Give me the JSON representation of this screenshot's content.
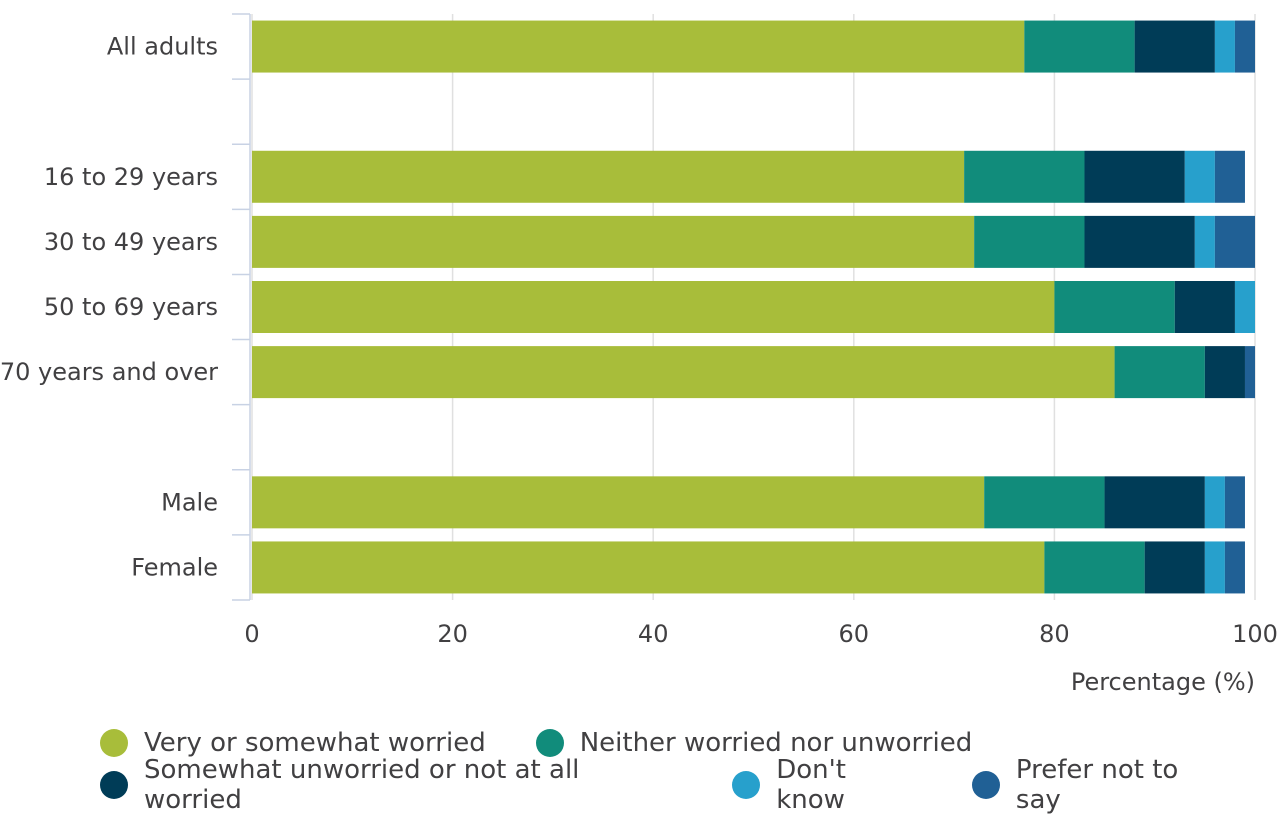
{
  "chart_data": {
    "type": "bar",
    "orientation": "horizontal",
    "stacked": true,
    "categories": [
      "All adults",
      "16 to 29 years",
      "30 to 49 years",
      "50 to 69 years",
      "70 years and over",
      "Male",
      "Female"
    ],
    "series": [
      {
        "name": "Very or somewhat worried",
        "color": "#a8bd3a",
        "values": [
          77,
          71,
          72,
          80,
          86,
          73,
          79
        ]
      },
      {
        "name": "Neither worried nor unworried",
        "color": "#118c7b",
        "values": [
          11,
          12,
          11,
          12,
          9,
          12,
          10
        ]
      },
      {
        "name": "Somewhat unworried or not at all worried",
        "color": "#003c57",
        "values": [
          8,
          10,
          11,
          6,
          4,
          10,
          6
        ]
      },
      {
        "name": "Don't know",
        "color": "#27a0cc",
        "values": [
          2,
          3,
          2,
          2,
          0,
          2,
          2
        ]
      },
      {
        "name": "Prefer not to say",
        "color": "#206095",
        "values": [
          2,
          3,
          4,
          0,
          1,
          2,
          2
        ]
      }
    ],
    "xlim": [
      0,
      100
    ],
    "xticks": [
      "0",
      "20",
      "40",
      "60",
      "80",
      "100"
    ],
    "xlabel": "Percentage (%)",
    "ylabel": "",
    "title": "",
    "grid": "vertical",
    "legend_position": "bottom"
  }
}
